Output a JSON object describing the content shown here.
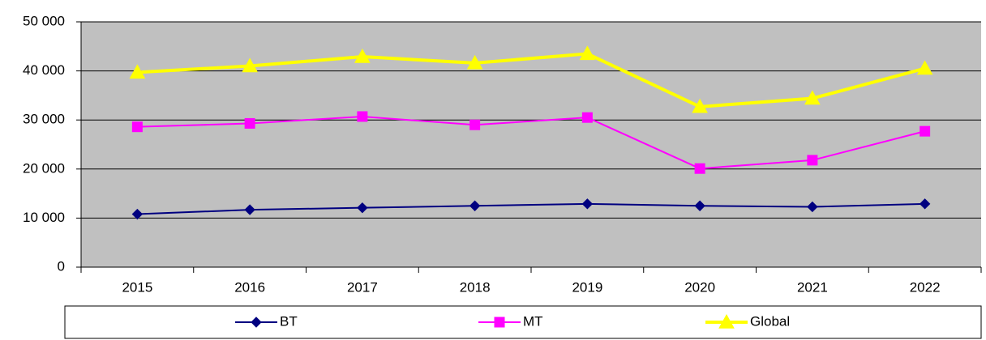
{
  "chart_data": {
    "type": "line",
    "categories": [
      "2015",
      "2016",
      "2017",
      "2018",
      "2019",
      "2020",
      "2021",
      "2022"
    ],
    "series": [
      {
        "name": "BT",
        "color": "#000080",
        "marker": "diamond",
        "values": [
          10800,
          11700,
          12100,
          12500,
          12900,
          12500,
          12300,
          12900
        ]
      },
      {
        "name": "MT",
        "color": "#ff00ff",
        "marker": "square",
        "values": [
          28600,
          29300,
          30700,
          29000,
          30500,
          20100,
          21800,
          27700
        ]
      },
      {
        "name": "Global",
        "color": "#ffff00",
        "marker": "triangle",
        "values": [
          39700,
          41000,
          42900,
          41600,
          43500,
          32700,
          34400,
          40500
        ]
      }
    ],
    "ylim": [
      0,
      50000
    ],
    "yticks": [
      0,
      {
        "value": 10000,
        "label": "10 000"
      },
      {
        "value": 20000,
        "label": "20 000"
      },
      {
        "value": 30000,
        "label": "30 000"
      },
      {
        "value": 40000,
        "label": "40 000"
      },
      {
        "value": 50000,
        "label": "50 000"
      }
    ],
    "grid": true,
    "legend": "bottom",
    "plot_background": "#c0c0c0"
  }
}
